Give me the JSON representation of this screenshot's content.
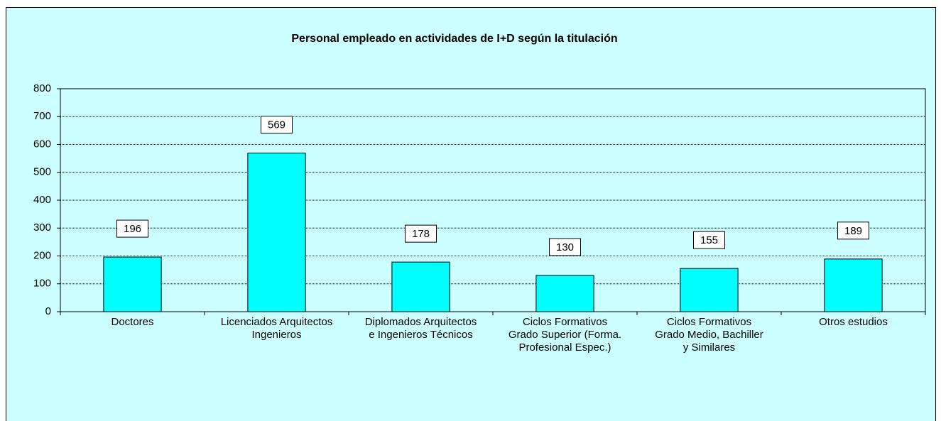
{
  "chart_data": {
    "type": "bar",
    "title": "Personal empleado en actividades de I+D según la titulación",
    "categories": [
      [
        "Doctores"
      ],
      [
        "Licenciados Arquitectos",
        "Ingenieros"
      ],
      [
        "Diplomados Arquitectos",
        "e Ingenieros Técnicos"
      ],
      [
        "Ciclos Formativos",
        "Grado Superior (Forma.",
        "Profesional Espec.)"
      ],
      [
        "Ciclos Formativos",
        "Grado Medio, Bachiller",
        "y Similares"
      ],
      [
        "Otros estudios"
      ]
    ],
    "values": [
      196,
      569,
      178,
      130,
      155,
      189
    ],
    "color": "#00ffff",
    "ylim": [
      0,
      800
    ],
    "yticks": [
      0,
      100,
      200,
      300,
      400,
      500,
      600,
      700,
      800
    ],
    "grid": true
  }
}
